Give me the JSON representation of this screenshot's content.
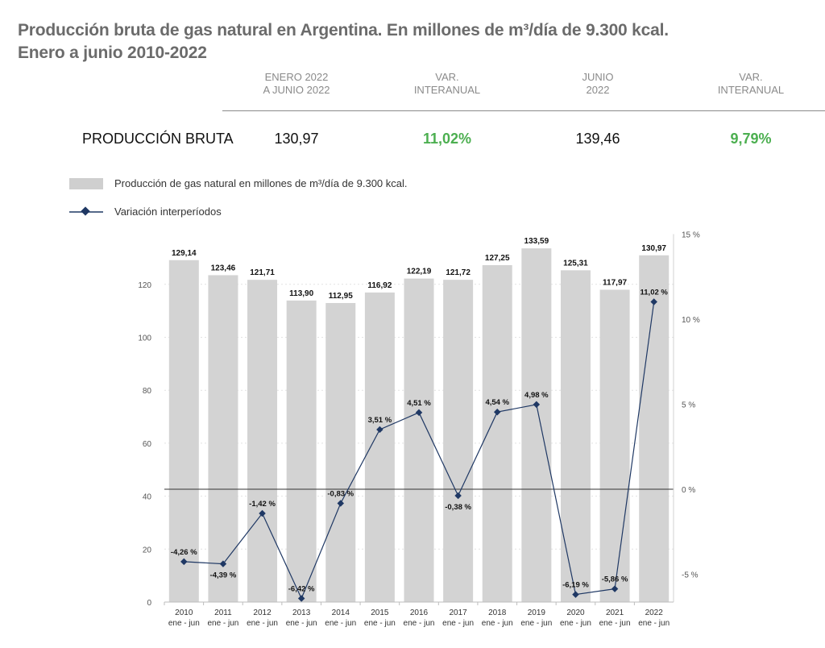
{
  "title": {
    "line1": "Producción bruta de gas natural en Argentina. En millones de m³/día de 9.300 kcal.",
    "line2": "Enero a junio 2010-2022"
  },
  "summary": {
    "headers": [
      {
        "line1": "ENERO 2022",
        "line2": "A JUNIO 2022"
      },
      {
        "line1": "VAR.",
        "line2": "INTERANUAL"
      },
      {
        "line1": "JUNIO",
        "line2": "2022"
      },
      {
        "line1": "VAR.",
        "line2": "INTERANUAL"
      }
    ],
    "row_label": "PRODUCCIÓN BRUTA",
    "values": [
      "130,97",
      "11,02%",
      "139,46",
      "9,79%"
    ],
    "positive_color": "#4caf50"
  },
  "legend": {
    "bars": "Producción de gas natural en millones de m³/día de 9.300 kcal.",
    "line": "Variación interperíodos"
  },
  "chart_data": {
    "type": "bar+line",
    "categories": [
      "2010",
      "2011",
      "2012",
      "2013",
      "2014",
      "2015",
      "2016",
      "2017",
      "2018",
      "2019",
      "2020",
      "2021",
      "2022"
    ],
    "category_sublabel": "ene - jun",
    "series": [
      {
        "type": "bar",
        "axis": "left",
        "values": [
          129.14,
          123.46,
          121.71,
          113.9,
          112.95,
          116.92,
          122.19,
          121.72,
          127.25,
          133.59,
          125.31,
          117.97,
          130.97
        ],
        "labels": [
          "129,14",
          "123,46",
          "121,71",
          "113,90",
          "112,95",
          "116,92",
          "122,19",
          "121,72",
          "127,25",
          "133,59",
          "125,31",
          "117,97",
          "130,97"
        ],
        "color": "#d3d3d3"
      },
      {
        "type": "line",
        "axis": "right",
        "values": [
          -4.26,
          -4.39,
          -1.42,
          -6.42,
          -0.83,
          3.51,
          4.51,
          -0.38,
          4.54,
          4.98,
          -6.19,
          -5.86,
          11.02
        ],
        "labels": [
          "-4,26 %",
          "-4,39 %",
          "-1,42 %",
          "-6,42 %",
          "-0,83 %",
          "3,51 %",
          "4,51 %",
          "-0,38 %",
          "4,54 %",
          "4,98 %",
          "-6,19 %",
          "-5,86 %",
          "11,02 %"
        ],
        "color": "#1f3864"
      }
    ],
    "y_left": {
      "ylim": [
        0,
        130
      ],
      "ticks": [
        0,
        20,
        40,
        60,
        80,
        100,
        120
      ],
      "tick_labels": [
        "0",
        "20",
        "40",
        "60",
        "80",
        "100",
        "120"
      ]
    },
    "y_right": {
      "ylim": [
        -6.5,
        15
      ],
      "ticks": [
        -5,
        0,
        5,
        10,
        15
      ],
      "tick_labels": [
        "-5 %",
        "0 %",
        "5 %",
        "10 %",
        "15 %"
      ]
    },
    "grid": true,
    "legend_position": "top-left"
  }
}
